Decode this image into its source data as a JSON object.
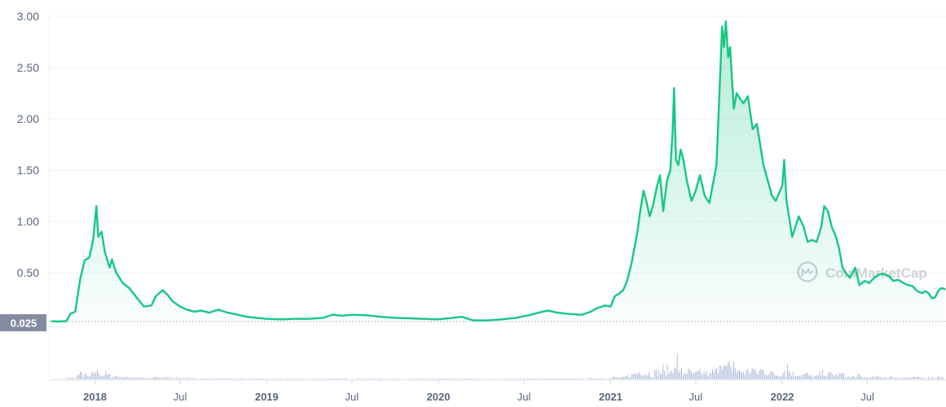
{
  "chart_data": {
    "type": "area",
    "x_ticks": [
      {
        "label": "2018",
        "date": "2018-01-01",
        "major": true
      },
      {
        "label": "Jul",
        "date": "2018-07-01",
        "major": false
      },
      {
        "label": "2019",
        "date": "2019-01-01",
        "major": true
      },
      {
        "label": "Jul",
        "date": "2019-07-01",
        "major": false
      },
      {
        "label": "2020",
        "date": "2020-01-01",
        "major": true
      },
      {
        "label": "Jul",
        "date": "2020-07-01",
        "major": false
      },
      {
        "label": "2021",
        "date": "2021-01-01",
        "major": true
      },
      {
        "label": "Jul",
        "date": "2021-07-01",
        "major": false
      },
      {
        "label": "2022",
        "date": "2022-01-01",
        "major": true
      },
      {
        "label": "Jul",
        "date": "2022-07-01",
        "major": false
      }
    ],
    "y_ticks": [
      "0.50",
      "1.00",
      "1.50",
      "2.00",
      "2.50",
      "3.00"
    ],
    "ylim": [
      0,
      3.0
    ],
    "xlim": [
      "2017-09-25",
      "2022-12-15"
    ],
    "grid": true,
    "reference_line": {
      "value": 0.025,
      "label": "0.025"
    },
    "watermark": "CoinMarketCap",
    "line_color": "#16c784",
    "volume_color": "#a7b3d6",
    "series": [
      {
        "values": [
          [
            "2017-10-01",
            0.027
          ],
          [
            "2017-10-15",
            0.025
          ],
          [
            "2017-11-01",
            0.028
          ],
          [
            "2017-11-10",
            0.1
          ],
          [
            "2017-11-20",
            0.12
          ],
          [
            "2017-12-01",
            0.45
          ],
          [
            "2017-12-10",
            0.62
          ],
          [
            "2017-12-20",
            0.65
          ],
          [
            "2017-12-28",
            0.82
          ],
          [
            "2018-01-04",
            1.15
          ],
          [
            "2018-01-08",
            0.85
          ],
          [
            "2018-01-15",
            0.9
          ],
          [
            "2018-01-22",
            0.7
          ],
          [
            "2018-02-01",
            0.55
          ],
          [
            "2018-02-06",
            0.63
          ],
          [
            "2018-02-15",
            0.5
          ],
          [
            "2018-03-01",
            0.4
          ],
          [
            "2018-03-15",
            0.35
          ],
          [
            "2018-04-01",
            0.25
          ],
          [
            "2018-04-15",
            0.17
          ],
          [
            "2018-05-01",
            0.18
          ],
          [
            "2018-05-10",
            0.27
          ],
          [
            "2018-05-25",
            0.33
          ],
          [
            "2018-06-05",
            0.28
          ],
          [
            "2018-06-15",
            0.22
          ],
          [
            "2018-07-01",
            0.17
          ],
          [
            "2018-07-15",
            0.14
          ],
          [
            "2018-08-01",
            0.12
          ],
          [
            "2018-08-15",
            0.13
          ],
          [
            "2018-09-01",
            0.11
          ],
          [
            "2018-09-20",
            0.14
          ],
          [
            "2018-10-10",
            0.11
          ],
          [
            "2018-11-01",
            0.09
          ],
          [
            "2018-11-20",
            0.07
          ],
          [
            "2018-12-10",
            0.06
          ],
          [
            "2019-01-01",
            0.05
          ],
          [
            "2019-02-01",
            0.045
          ],
          [
            "2019-03-01",
            0.05
          ],
          [
            "2019-04-01",
            0.05
          ],
          [
            "2019-05-01",
            0.06
          ],
          [
            "2019-05-20",
            0.09
          ],
          [
            "2019-06-10",
            0.08
          ],
          [
            "2019-07-01",
            0.09
          ],
          [
            "2019-08-01",
            0.085
          ],
          [
            "2019-09-01",
            0.07
          ],
          [
            "2019-10-01",
            0.06
          ],
          [
            "2019-11-01",
            0.055
          ],
          [
            "2019-12-01",
            0.05
          ],
          [
            "2020-01-01",
            0.045
          ],
          [
            "2020-02-01",
            0.06
          ],
          [
            "2020-02-20",
            0.07
          ],
          [
            "2020-03-15",
            0.035
          ],
          [
            "2020-04-15",
            0.035
          ],
          [
            "2020-05-15",
            0.045
          ],
          [
            "2020-06-15",
            0.06
          ],
          [
            "2020-07-15",
            0.09
          ],
          [
            "2020-08-01",
            0.11
          ],
          [
            "2020-08-20",
            0.13
          ],
          [
            "2020-09-10",
            0.11
          ],
          [
            "2020-10-01",
            0.1
          ],
          [
            "2020-11-01",
            0.09
          ],
          [
            "2020-11-20",
            0.12
          ],
          [
            "2020-12-01",
            0.15
          ],
          [
            "2020-12-20",
            0.18
          ],
          [
            "2021-01-01",
            0.17
          ],
          [
            "2021-01-10",
            0.27
          ],
          [
            "2021-01-20",
            0.3
          ],
          [
            "2021-01-28",
            0.33
          ],
          [
            "2021-02-05",
            0.42
          ],
          [
            "2021-02-15",
            0.6
          ],
          [
            "2021-02-27",
            0.9
          ],
          [
            "2021-03-05",
            1.1
          ],
          [
            "2021-03-12",
            1.3
          ],
          [
            "2021-03-18",
            1.2
          ],
          [
            "2021-03-25",
            1.05
          ],
          [
            "2021-04-01",
            1.15
          ],
          [
            "2021-04-10",
            1.35
          ],
          [
            "2021-04-16",
            1.45
          ],
          [
            "2021-04-23",
            1.1
          ],
          [
            "2021-05-01",
            1.4
          ],
          [
            "2021-05-08",
            1.5
          ],
          [
            "2021-05-13",
            1.9
          ],
          [
            "2021-05-16",
            2.3
          ],
          [
            "2021-05-20",
            1.6
          ],
          [
            "2021-05-25",
            1.55
          ],
          [
            "2021-05-30",
            1.7
          ],
          [
            "2021-06-05",
            1.6
          ],
          [
            "2021-06-12",
            1.4
          ],
          [
            "2021-06-22",
            1.2
          ],
          [
            "2021-07-01",
            1.3
          ],
          [
            "2021-07-10",
            1.45
          ],
          [
            "2021-07-20",
            1.25
          ],
          [
            "2021-07-30",
            1.18
          ],
          [
            "2021-08-08",
            1.4
          ],
          [
            "2021-08-14",
            1.55
          ],
          [
            "2021-08-20",
            2.2
          ],
          [
            "2021-08-26",
            2.9
          ],
          [
            "2021-08-30",
            2.7
          ],
          [
            "2021-09-03",
            2.95
          ],
          [
            "2021-09-08",
            2.6
          ],
          [
            "2021-09-12",
            2.7
          ],
          [
            "2021-09-16",
            2.4
          ],
          [
            "2021-09-20",
            2.1
          ],
          [
            "2021-09-26",
            2.25
          ],
          [
            "2021-10-03",
            2.2
          ],
          [
            "2021-10-10",
            2.15
          ],
          [
            "2021-10-20",
            2.22
          ],
          [
            "2021-10-30",
            1.9
          ],
          [
            "2021-11-08",
            1.95
          ],
          [
            "2021-11-15",
            1.75
          ],
          [
            "2021-11-22",
            1.55
          ],
          [
            "2021-12-01",
            1.4
          ],
          [
            "2021-12-10",
            1.25
          ],
          [
            "2021-12-18",
            1.2
          ],
          [
            "2022-01-01",
            1.35
          ],
          [
            "2022-01-05",
            1.6
          ],
          [
            "2022-01-10",
            1.2
          ],
          [
            "2022-01-22",
            0.85
          ],
          [
            "2022-02-05",
            1.05
          ],
          [
            "2022-02-15",
            0.95
          ],
          [
            "2022-02-24",
            0.8
          ],
          [
            "2022-03-05",
            0.82
          ],
          [
            "2022-03-15",
            0.8
          ],
          [
            "2022-03-25",
            0.95
          ],
          [
            "2022-03-31",
            1.15
          ],
          [
            "2022-04-08",
            1.1
          ],
          [
            "2022-04-16",
            0.95
          ],
          [
            "2022-04-25",
            0.85
          ],
          [
            "2022-05-01",
            0.75
          ],
          [
            "2022-05-09",
            0.55
          ],
          [
            "2022-05-15",
            0.5
          ],
          [
            "2022-05-25",
            0.45
          ],
          [
            "2022-06-05",
            0.55
          ],
          [
            "2022-06-14",
            0.38
          ],
          [
            "2022-06-25",
            0.42
          ],
          [
            "2022-07-05",
            0.4
          ],
          [
            "2022-07-15",
            0.45
          ],
          [
            "2022-07-25",
            0.48
          ],
          [
            "2022-08-01",
            0.49
          ],
          [
            "2022-08-15",
            0.47
          ],
          [
            "2022-08-25",
            0.42
          ],
          [
            "2022-09-05",
            0.43
          ],
          [
            "2022-09-15",
            0.4
          ],
          [
            "2022-09-25",
            0.38
          ],
          [
            "2022-10-05",
            0.37
          ],
          [
            "2022-10-15",
            0.32
          ],
          [
            "2022-10-25",
            0.3
          ],
          [
            "2022-11-01",
            0.32
          ],
          [
            "2022-11-08",
            0.3
          ],
          [
            "2022-11-15",
            0.25
          ],
          [
            "2022-11-22",
            0.26
          ],
          [
            "2022-11-28",
            0.32
          ],
          [
            "2022-12-05",
            0.35
          ],
          [
            "2022-12-12",
            0.34
          ]
        ]
      }
    ]
  }
}
